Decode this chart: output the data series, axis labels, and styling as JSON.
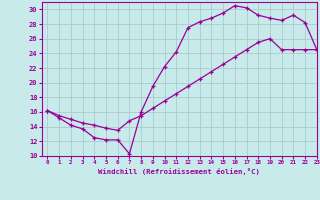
{
  "xlabel": "Windchill (Refroidissement éolien,°C)",
  "bg_color": "#c8eaea",
  "line_color": "#990099",
  "grid_color": "#aacccc",
  "curve1_x": [
    0,
    1,
    2,
    3,
    4,
    5,
    6,
    7,
    8,
    9,
    10,
    11,
    12,
    13,
    14,
    15,
    16,
    17,
    18,
    19,
    20,
    21,
    22,
    23
  ],
  "curve1_y": [
    16.2,
    15.2,
    14.2,
    13.7,
    12.5,
    12.2,
    12.2,
    10.3,
    16.0,
    19.5,
    22.2,
    24.2,
    27.5,
    28.3,
    28.8,
    29.5,
    30.5,
    30.2,
    29.2,
    28.8,
    28.5,
    29.2,
    28.2,
    24.5
  ],
  "curve2_x": [
    0,
    1,
    2,
    3,
    4,
    5,
    6,
    7,
    8,
    9,
    10,
    11,
    12,
    13,
    14,
    15,
    16,
    17,
    18,
    19,
    20,
    21,
    22,
    23
  ],
  "curve2_y": [
    16.2,
    15.5,
    15.0,
    14.5,
    14.2,
    13.8,
    13.5,
    14.8,
    15.5,
    16.5,
    17.5,
    18.5,
    19.5,
    20.5,
    21.5,
    22.5,
    23.5,
    24.5,
    25.5,
    26.0,
    24.5,
    24.5,
    24.5,
    24.5
  ],
  "ylim": [
    10,
    31
  ],
  "xlim": [
    -0.5,
    23
  ],
  "yticks": [
    10,
    12,
    14,
    16,
    18,
    20,
    22,
    24,
    26,
    28,
    30
  ],
  "xticks": [
    0,
    1,
    2,
    3,
    4,
    5,
    6,
    7,
    8,
    9,
    10,
    11,
    12,
    13,
    14,
    15,
    16,
    17,
    18,
    19,
    20,
    21,
    22,
    23
  ]
}
